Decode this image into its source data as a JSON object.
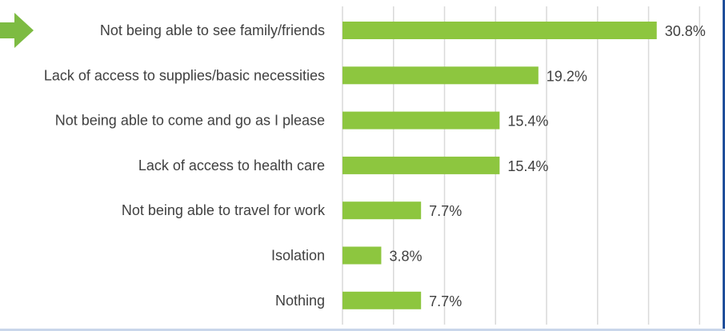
{
  "chart_data": {
    "type": "bar",
    "orientation": "horizontal",
    "categories": [
      "Not being able to see family/friends",
      "Lack of access to supplies/basic necessities",
      "Not being able to come and go as I please",
      "Lack of access to health care",
      "Not being able to travel for work",
      "Isolation",
      "Nothing"
    ],
    "values": [
      30.8,
      19.2,
      15.4,
      15.4,
      7.7,
      3.8,
      7.7
    ],
    "value_labels": [
      "30.8%",
      "19.2%",
      "15.4%",
      "15.4%",
      "7.7%",
      "3.8%",
      "7.7%"
    ],
    "xlim": [
      0,
      35
    ],
    "grid": true,
    "title": "",
    "xlabel": "",
    "ylabel": "",
    "highlight_category_index": 0,
    "colors": {
      "bar": "#8dc63f",
      "arrow": "#7dbb42",
      "grid": "#d9d9d9",
      "text": "#404040"
    }
  }
}
